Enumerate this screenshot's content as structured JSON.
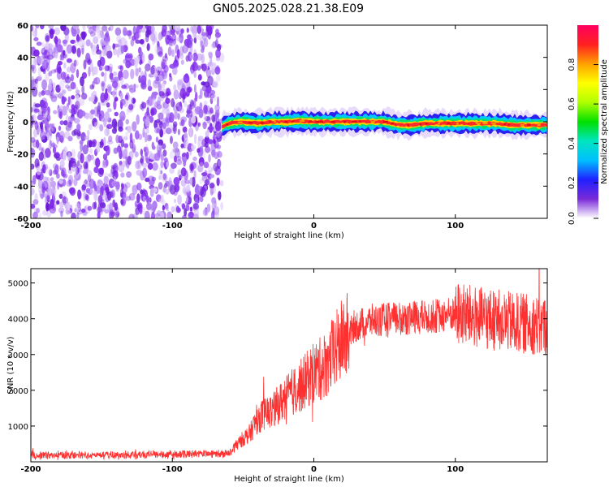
{
  "title": "GN05.2025.028.21.38.E09",
  "chart_data": [
    {
      "type": "heatmap",
      "xlabel": "Height of straight line (km)",
      "ylabel": "Frequency (Hz)",
      "xlim": [
        -200,
        165
      ],
      "ylim": [
        -60,
        60
      ],
      "xticks": [
        -200,
        -100,
        0,
        100
      ],
      "yticks": [
        -60,
        -40,
        -20,
        0,
        20,
        40,
        60
      ],
      "noise_region_x": [
        -200,
        -65
      ],
      "signal_band": {
        "x_start": -65,
        "x_end": 165,
        "center_hz": [
          [
            -65,
            -3
          ],
          [
            -60,
            -1
          ],
          [
            -50,
            0
          ],
          [
            -40,
            -1
          ],
          [
            -30,
            0
          ],
          [
            -20,
            0
          ],
          [
            -10,
            0.5
          ],
          [
            0,
            0
          ],
          [
            10,
            0
          ],
          [
            20,
            0
          ],
          [
            30,
            0
          ],
          [
            40,
            0
          ],
          [
            50,
            0
          ],
          [
            60,
            -2
          ],
          [
            70,
            -2
          ],
          [
            80,
            -1
          ],
          [
            90,
            -1
          ],
          [
            100,
            -1
          ],
          [
            110,
            -1
          ],
          [
            120,
            -1
          ],
          [
            130,
            -1
          ],
          [
            140,
            -2
          ],
          [
            150,
            -2
          ],
          [
            165,
            -2
          ]
        ],
        "half_width_hz": 5
      },
      "colorbar": {
        "label": "Normalized spectral amplitude",
        "range": [
          0,
          1
        ],
        "ticks": [
          "0.0",
          "0.2",
          "0.4",
          "0.6",
          "0.8"
        ],
        "tick_values": [
          0.0,
          0.2,
          0.4,
          0.6,
          0.8
        ],
        "colormap": [
          "#ffffff",
          "#7a2bd8",
          "#2020ff",
          "#00bfff",
          "#00e5c0",
          "#00e000",
          "#b0ff00",
          "#ffff00",
          "#ffa000",
          "#ff2020",
          "#ff0060"
        ]
      }
    },
    {
      "type": "line",
      "xlabel": "Height of straight line (km)",
      "ylabel": "SNR (10 * v/v)",
      "xlim": [
        -200,
        165
      ],
      "ylim": [
        0,
        5400
      ],
      "xticks": [
        -200,
        -100,
        0,
        100
      ],
      "yticks": [
        1000,
        2000,
        3000,
        4000,
        5000
      ],
      "series": [
        {
          "color": "#ff3030",
          "trend": [
            [
              -200,
              180
            ],
            [
              -150,
              190
            ],
            [
              -100,
              200
            ],
            [
              -60,
              230
            ],
            [
              -55,
              450
            ],
            [
              -50,
              650
            ],
            [
              -45,
              800
            ],
            [
              -40,
              1200
            ],
            [
              -35,
              1350
            ],
            [
              -30,
              1400
            ],
            [
              -25,
              1600
            ],
            [
              -20,
              1800
            ],
            [
              -10,
              2100
            ],
            [
              -5,
              2300
            ],
            [
              0,
              2500
            ],
            [
              5,
              2600
            ],
            [
              10,
              2800
            ],
            [
              15,
              3100
            ],
            [
              20,
              3400
            ],
            [
              25,
              3600
            ],
            [
              30,
              3800
            ],
            [
              40,
              3950
            ],
            [
              60,
              4000
            ],
            [
              80,
              4050
            ],
            [
              100,
              4150
            ],
            [
              120,
              4000
            ],
            [
              140,
              3900
            ],
            [
              165,
              3800
            ]
          ]
        }
      ]
    }
  ]
}
